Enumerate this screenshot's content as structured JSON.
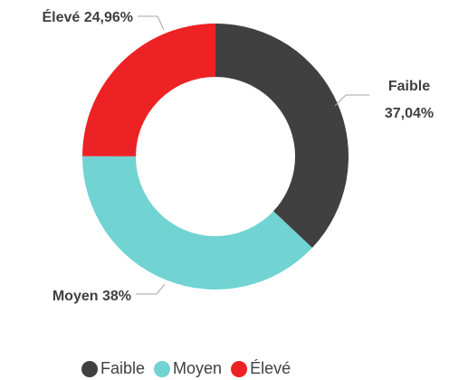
{
  "chart_data": {
    "type": "donut",
    "categories": [
      "Faible",
      "Moyen",
      "Élevé"
    ],
    "values": [
      37.04,
      38,
      24.96
    ],
    "value_labels": [
      "37,04%",
      "38%",
      "24,96%"
    ],
    "colors": [
      "#404040",
      "#72d3d3",
      "#ed2224"
    ],
    "legend": "bottom"
  }
}
